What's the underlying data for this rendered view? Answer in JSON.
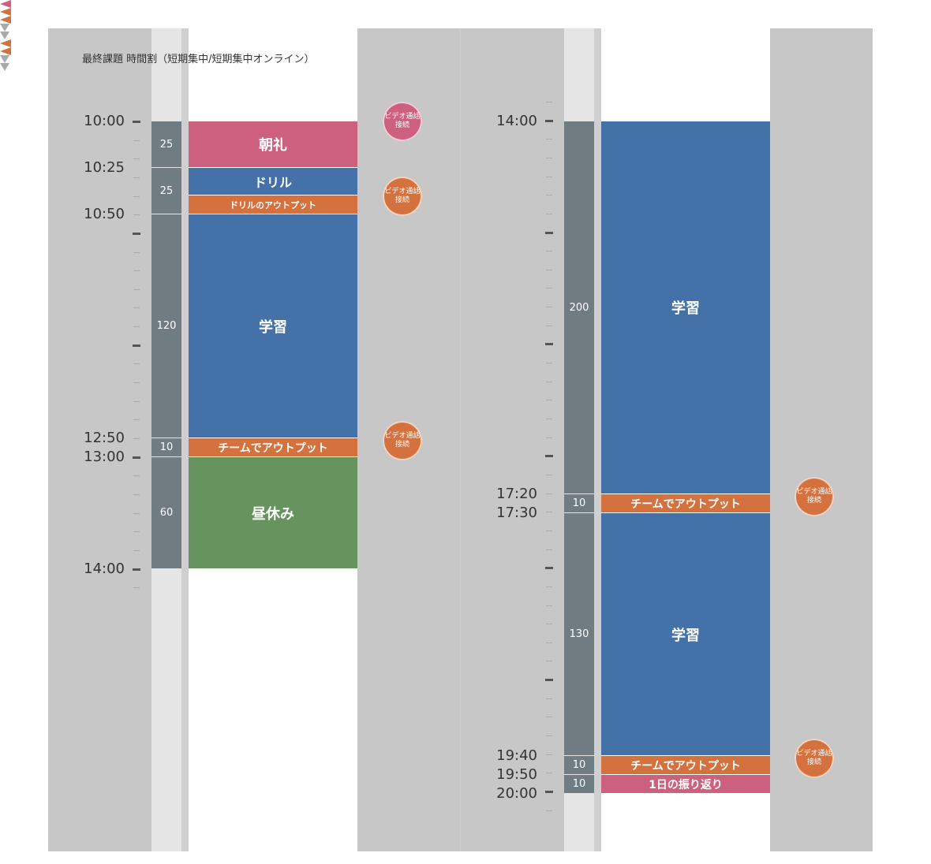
{
  "title": "最終課題 時間割（短期集中/短期集中オンライン）",
  "colors": {
    "pink": "#cc607e",
    "blue": "#4472a8",
    "orange": "#d3723e",
    "green": "#67945e",
    "duration_bar": "#6f7d82",
    "rail_light": "#e5e5e5",
    "rail_mid": "#cfcfcf",
    "background_gray": "#c7c7c7"
  },
  "video_call_badge": [
    "ビデオ通話",
    "接続"
  ],
  "continue_icon": "double-down-triangle-icon",
  "morning": {
    "time_labels": [
      "10:00",
      "10:25",
      "10:50",
      "12:50",
      "13:00",
      "14:00"
    ],
    "durations": [
      "25",
      "25",
      "120",
      "10",
      "60"
    ],
    "blocks": [
      {
        "label": "朝礼",
        "color": "pink"
      },
      {
        "label": "ドリル",
        "color": "blue"
      },
      {
        "label": "ドリルのアウトプット",
        "color": "orange"
      },
      {
        "label": "学習",
        "color": "blue"
      },
      {
        "label": "チームでアウトプット",
        "color": "orange"
      },
      {
        "label": "昼休み",
        "color": "green"
      }
    ]
  },
  "afternoon": {
    "time_labels": [
      "14:00",
      "17:20",
      "17:30",
      "19:40",
      "19:50",
      "20:00"
    ],
    "durations": [
      "200",
      "10",
      "130",
      "10",
      "10"
    ],
    "blocks": [
      {
        "label": "学習",
        "color": "blue"
      },
      {
        "label": "チームでアウトプット",
        "color": "orange"
      },
      {
        "label": "学習",
        "color": "blue"
      },
      {
        "label": "チームでアウトプット",
        "color": "orange"
      },
      {
        "label": "1日の振り返り",
        "color": "pink"
      }
    ]
  }
}
